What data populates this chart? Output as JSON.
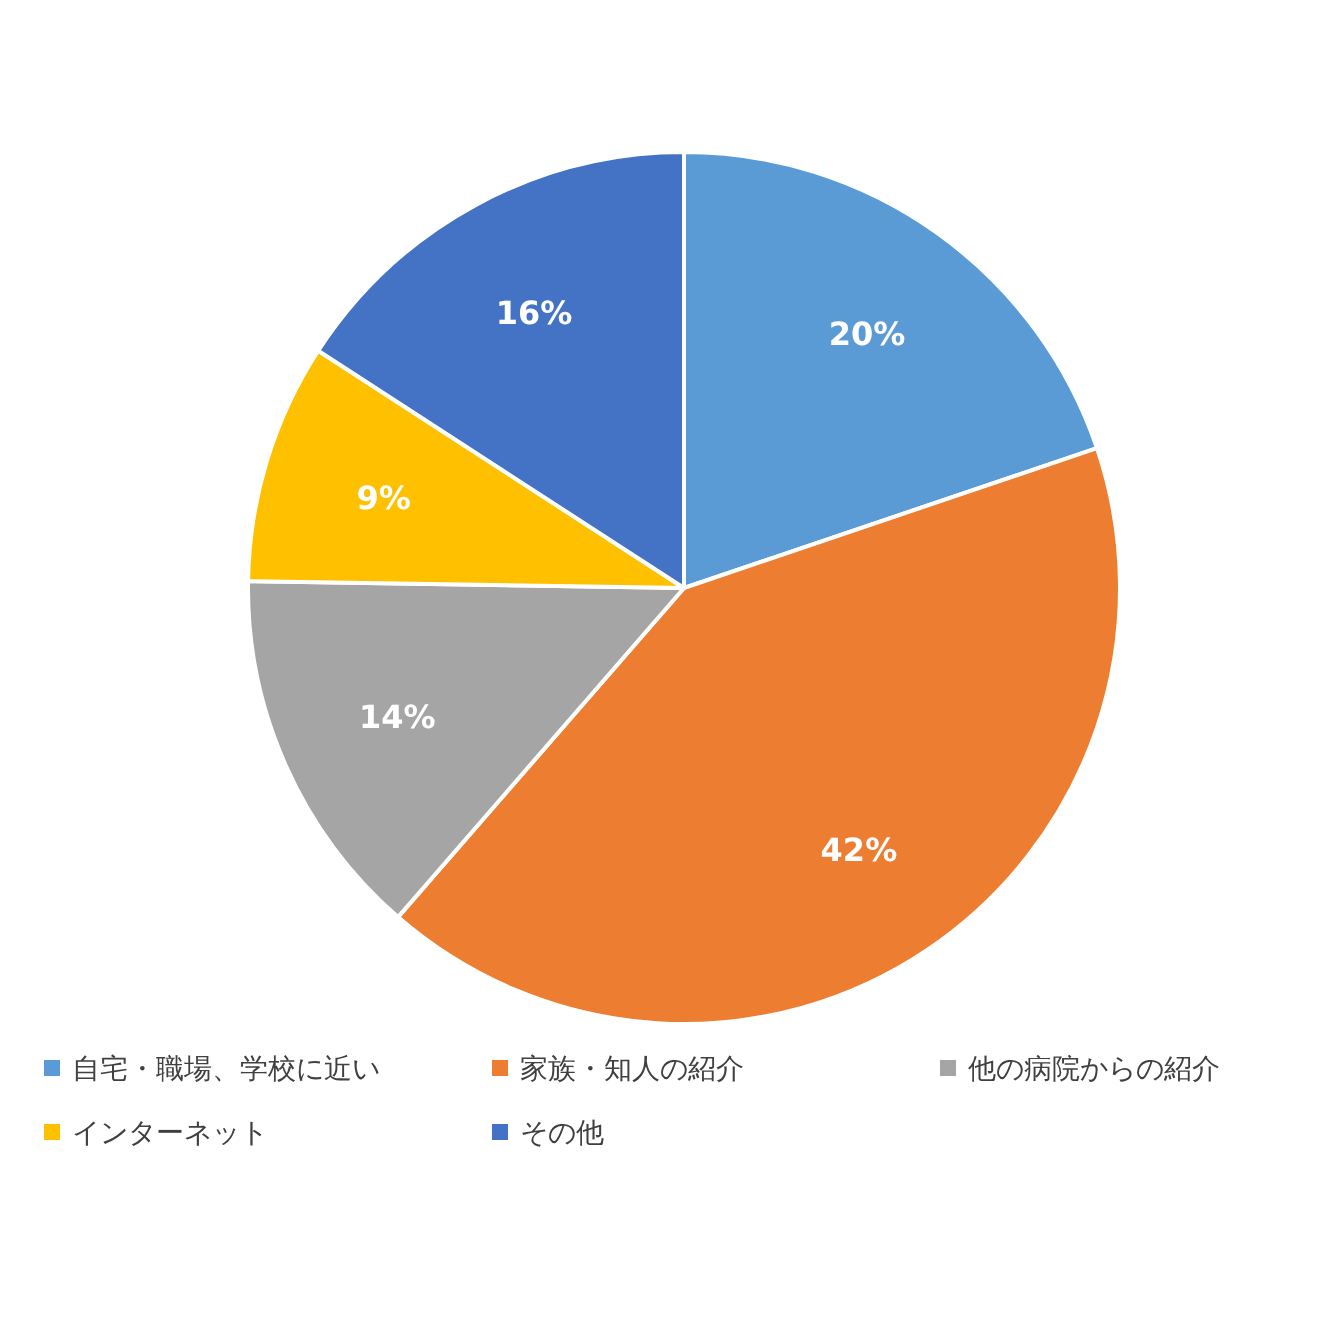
{
  "chart_data": {
    "type": "pie",
    "categories": [
      "自宅・職場、学校に近い",
      "家族・知人の紹介",
      "他の病院からの紹介",
      "インターネット",
      "その他"
    ],
    "values": [
      20,
      42,
      14,
      9,
      16
    ],
    "colors": [
      "#5b9bd5",
      "#ed7d31",
      "#a5a5a5",
      "#ffc000",
      "#4472c4"
    ],
    "value_labels": [
      "20%",
      "42%",
      "14%",
      "9%",
      "16%"
    ],
    "legend": "bottom"
  }
}
